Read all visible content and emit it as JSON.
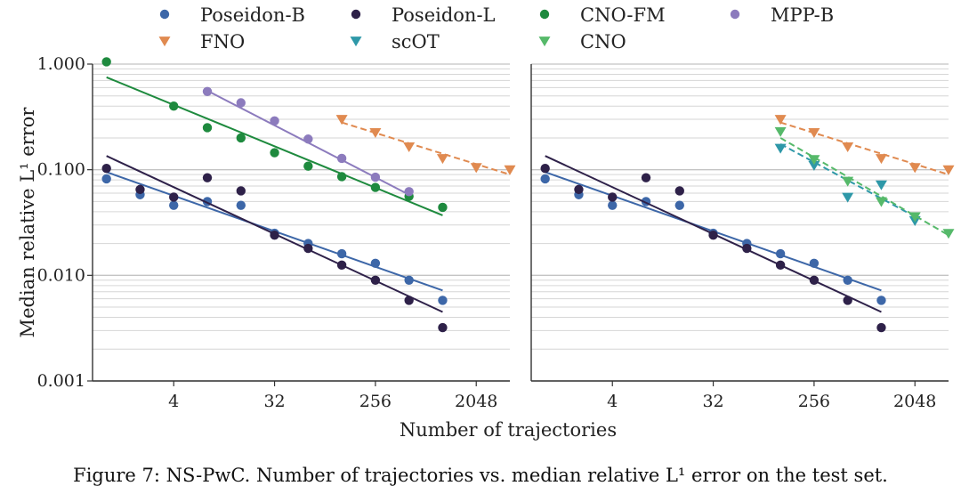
{
  "caption": "Figure 7: NS-PwC. Number of trajectories vs. median relative L¹ error on the test set.",
  "legend_position": "top",
  "colors": {
    "Poseidon-B": "#3d67a8",
    "Poseidon-L": "#2e2149",
    "CNO-FM": "#1e8a3e",
    "MPP-B": "#8c7bbd",
    "FNO": "#e08a50",
    "scOT": "#2e98a8",
    "CNO": "#56b96a"
  },
  "legend": [
    {
      "label": "Poseidon-B",
      "marker": "circle"
    },
    {
      "label": "Poseidon-L",
      "marker": "circle"
    },
    {
      "label": "CNO-FM",
      "marker": "circle"
    },
    {
      "label": "MPP-B",
      "marker": "circle"
    },
    {
      "label": "FNO",
      "marker": "triangle-down"
    },
    {
      "label": "scOT",
      "marker": "triangle-down"
    },
    {
      "label": "CNO",
      "marker": "triangle-down"
    }
  ],
  "chart_data": [
    {
      "type": "scatter",
      "title": "",
      "xscale": "log2",
      "yscale": "log10",
      "xlabel": "Number of trajectories",
      "ylabel": "Median relative L¹ error",
      "xlim": [
        0.75,
        4096
      ],
      "ylim": [
        0.001,
        1.0
      ],
      "xticks": [
        4,
        32,
        256,
        2048
      ],
      "xtick_labels": [
        "4",
        "32",
        "256",
        "2048"
      ],
      "yticks": [
        0.001,
        0.01,
        0.1,
        1.0
      ],
      "ytick_labels": [
        "0.001",
        "0.010",
        "0.100",
        "1.000"
      ],
      "series": [
        {
          "name": "Poseidon-B",
          "marker": "circle",
          "x": [
            1,
            2,
            4,
            8,
            16,
            32,
            64,
            128,
            256,
            512,
            1024
          ],
          "y": [
            0.082,
            0.058,
            0.046,
            0.05,
            0.046,
            0.025,
            0.02,
            0.016,
            0.013,
            0.009,
            0.0058
          ],
          "fit": {
            "x": [
              1,
              1024
            ],
            "y": [
              0.095,
              0.0072
            ],
            "dashed": false
          }
        },
        {
          "name": "Poseidon-L",
          "marker": "circle",
          "x": [
            1,
            2,
            4,
            8,
            16,
            32,
            64,
            128,
            256,
            512,
            1024
          ],
          "y": [
            0.103,
            0.065,
            0.055,
            0.084,
            0.063,
            0.024,
            0.018,
            0.0125,
            0.009,
            0.0058,
            0.0032
          ],
          "fit": {
            "x": [
              1,
              1024
            ],
            "y": [
              0.135,
              0.0045
            ],
            "dashed": false
          }
        },
        {
          "name": "CNO-FM",
          "marker": "circle",
          "x": [
            1,
            4,
            8,
            16,
            32,
            64,
            128,
            256,
            512,
            1024
          ],
          "y": [
            1.05,
            0.4,
            0.25,
            0.2,
            0.145,
            0.108,
            0.086,
            0.068,
            0.056,
            0.044
          ],
          "fit": {
            "x": [
              1,
              1024
            ],
            "y": [
              0.75,
              0.037
            ],
            "dashed": false
          }
        },
        {
          "name": "MPP-B",
          "marker": "circle",
          "x": [
            8,
            16,
            32,
            64,
            128,
            256,
            512
          ],
          "y": [
            0.55,
            0.43,
            0.29,
            0.195,
            0.128,
            0.085,
            0.062
          ],
          "fit": {
            "x": [
              8,
              512
            ],
            "y": [
              0.56,
              0.058
            ],
            "dashed": false
          }
        },
        {
          "name": "FNO",
          "marker": "triangle-down",
          "x": [
            128,
            256,
            512,
            1024,
            2048,
            4096
          ],
          "y": [
            0.3,
            0.225,
            0.165,
            0.128,
            0.105,
            0.1
          ],
          "fit": {
            "x": [
              128,
              4096
            ],
            "y": [
              0.28,
              0.09
            ],
            "dashed": true
          }
        }
      ]
    },
    {
      "type": "scatter",
      "title": "",
      "xscale": "log2",
      "yscale": "log10",
      "xlabel": "Number of trajectories",
      "ylabel": "",
      "xlim": [
        0.75,
        4096
      ],
      "ylim": [
        0.001,
        1.0
      ],
      "xticks": [
        4,
        32,
        256,
        2048
      ],
      "xtick_labels": [
        "4",
        "32",
        "256",
        "2048"
      ],
      "series": [
        {
          "name": "Poseidon-B",
          "marker": "circle",
          "x": [
            1,
            2,
            4,
            8,
            16,
            32,
            64,
            128,
            256,
            512,
            1024
          ],
          "y": [
            0.082,
            0.058,
            0.046,
            0.05,
            0.046,
            0.025,
            0.02,
            0.016,
            0.013,
            0.009,
            0.0058
          ],
          "fit": {
            "x": [
              1,
              1024
            ],
            "y": [
              0.095,
              0.0072
            ],
            "dashed": false
          }
        },
        {
          "name": "Poseidon-L",
          "marker": "circle",
          "x": [
            1,
            2,
            4,
            8,
            16,
            32,
            64,
            128,
            256,
            512,
            1024
          ],
          "y": [
            0.103,
            0.065,
            0.055,
            0.084,
            0.063,
            0.024,
            0.018,
            0.0125,
            0.009,
            0.0058,
            0.0032
          ],
          "fit": {
            "x": [
              1,
              1024
            ],
            "y": [
              0.135,
              0.0045
            ],
            "dashed": false
          }
        },
        {
          "name": "FNO",
          "marker": "triangle-down",
          "x": [
            128,
            256,
            512,
            1024,
            2048,
            4096
          ],
          "y": [
            0.3,
            0.225,
            0.165,
            0.128,
            0.105,
            0.1
          ],
          "fit": {
            "x": [
              128,
              4096
            ],
            "y": [
              0.28,
              0.09
            ],
            "dashed": true
          }
        },
        {
          "name": "scOT",
          "marker": "triangle-down",
          "x": [
            128,
            256,
            512,
            1024,
            2048
          ],
          "y": [
            0.16,
            0.11,
            0.055,
            0.072,
            0.033
          ],
          "fit": {
            "x": [
              128,
              2048
            ],
            "y": [
              0.175,
              0.036
            ],
            "dashed": true
          }
        },
        {
          "name": "CNO",
          "marker": "triangle-down",
          "x": [
            128,
            256,
            512,
            1024,
            2048,
            4096
          ],
          "y": [
            0.23,
            0.125,
            0.078,
            0.05,
            0.036,
            0.025
          ],
          "fit": {
            "x": [
              128,
              4096
            ],
            "y": [
              0.2,
              0.024
            ],
            "dashed": true
          }
        }
      ]
    }
  ]
}
